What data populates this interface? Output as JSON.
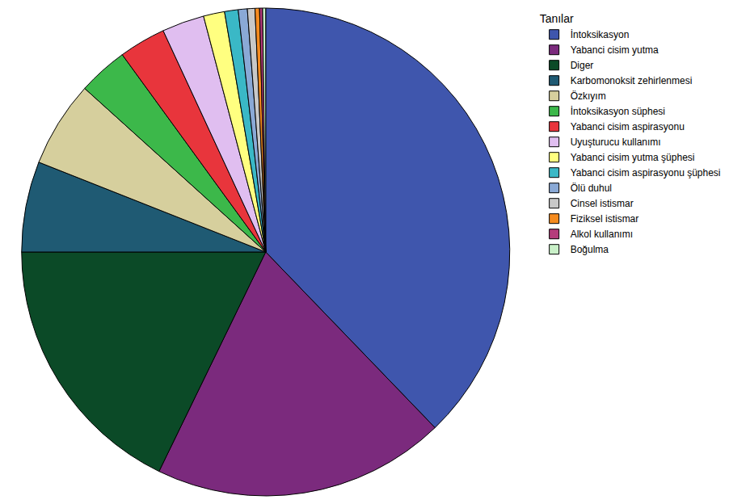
{
  "chart_data": {
    "type": "pie",
    "legend_title": "Tanılar",
    "legend": "right",
    "data_labels": false,
    "categories": [
      "İntoksikasyon",
      "Yabanci cisim yutma",
      "Diger",
      "Karbomonoksit zehirlenmesi",
      "Özkıyım",
      "İntoksikasyon süphesi",
      "Yabanci cisim aspirasyonu",
      "Uyuşturucu kullanımı",
      "Yabanci cisim yutma şüphesi",
      "Yabanci cisim aspirasyonu şüphesi",
      "Ölü duhul",
      "Cinsel istismar",
      "Fiziksel istismar",
      "Alkol kullanımı",
      "Boğulma"
    ],
    "values": [
      37.8,
      19.4,
      17.8,
      6.0,
      5.7,
      3.3,
      3.1,
      2.8,
      1.4,
      0.9,
      0.6,
      0.5,
      0.3,
      0.2,
      0.2
    ],
    "colors": [
      "#3f56ad",
      "#7b2a7d",
      "#0b4a27",
      "#1f5a73",
      "#d6cf9d",
      "#3cb84a",
      "#e8353c",
      "#e0bef0",
      "#ffff80",
      "#3ab8c6",
      "#8aa9d6",
      "#c8c8c8",
      "#f58b1f",
      "#b53c7b",
      "#c9f0c8"
    ]
  }
}
